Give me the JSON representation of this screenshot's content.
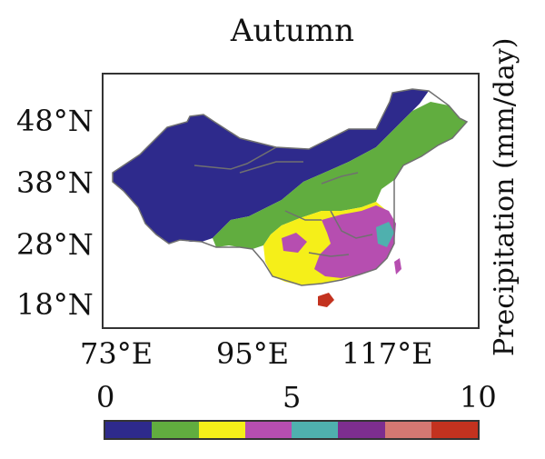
{
  "title": "Autumn",
  "latitude_labels": [
    "48°N",
    "38°N",
    "28°N",
    "18°N"
  ],
  "longitude_labels": [
    "73°E",
    "95°E",
    "117°E"
  ],
  "colorbar": {
    "label": "Precipitation (mm/day)",
    "tick_labels": [
      "0",
      "5",
      "10"
    ],
    "range": [
      0,
      10
    ],
    "colors": [
      "#2e2a8c",
      "#61ad3f",
      "#f5ef19",
      "#b64eb0",
      "#4fb0ae",
      "#7d2e8f",
      "#d47872",
      "#c3321f"
    ]
  },
  "map_colors": {
    "dry": "#2e2a8c",
    "semi_dry": "#61ad3f",
    "moderate": "#f5ef19",
    "wet": "#b64eb0",
    "very_wet": "#4fb0ae",
    "wettest": "#c3321f",
    "border": "#707070"
  }
}
